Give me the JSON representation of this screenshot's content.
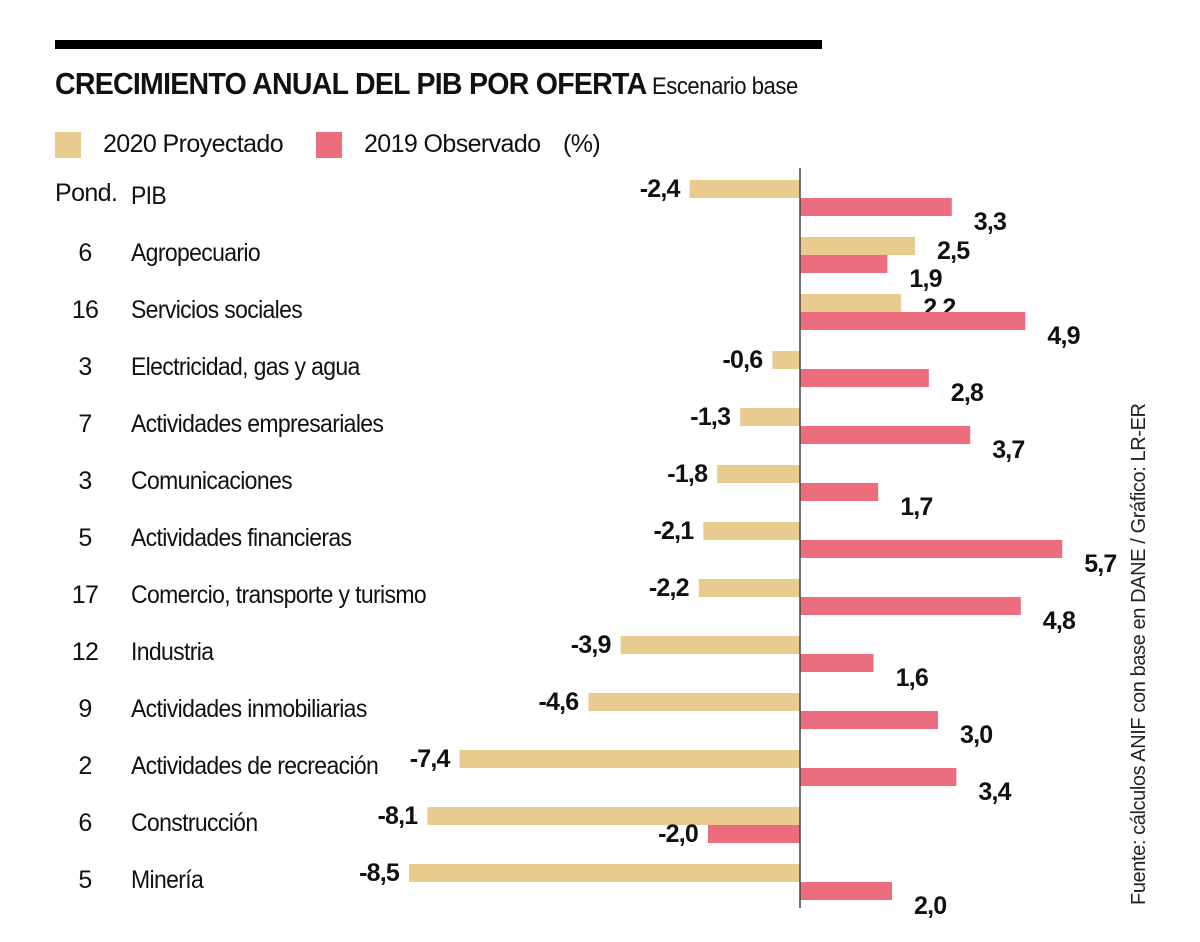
{
  "header": {
    "title": "CRECIMIENTO ANUAL DEL PIB POR OFERTA",
    "subtitle": "Escenario base"
  },
  "legend": {
    "items": [
      {
        "label": "2020 Proyectado",
        "color": "#e9cb90"
      },
      {
        "label": "2019 Observado",
        "color": "#ec6e7e"
      }
    ],
    "unit": "(%)"
  },
  "columns": {
    "weight_header": "Pond.",
    "first_category": "PIB"
  },
  "source": "Fuente: cálculos ANIF con base en DANE / Gráfico: LR-ER",
  "chart_data": {
    "type": "bar",
    "orientation": "horizontal",
    "title": "CRECIMIENTO ANUAL DEL PIB POR OFERTA",
    "subtitle": "Escenario base",
    "unit": "%",
    "categories": [
      "PIB",
      "Agropecuario",
      "Servicios sociales",
      "Electricidad, gas y agua",
      "Actividades empresariales",
      "Comunicaciones",
      "Actividades financieras",
      "Comercio, transporte y turismo",
      "Industria",
      "Actividades inmobiliarias",
      "Actividades de recreación",
      "Construcción",
      "Minería"
    ],
    "weights": [
      "",
      "6",
      "16",
      "3",
      "7",
      "3",
      "5",
      "17",
      "12",
      "9",
      "2",
      "6",
      "5"
    ],
    "series": [
      {
        "name": "2020 Proyectado",
        "color": "#e9cb90",
        "values": [
          -2.4,
          2.5,
          2.2,
          -0.6,
          -1.3,
          -1.8,
          -2.1,
          -2.2,
          -3.9,
          -4.6,
          -7.4,
          -8.1,
          -8.5
        ],
        "labels": [
          "-2,4",
          "2,5",
          "2,2",
          "-0,6",
          "-1,3",
          "-1,8",
          "-2,1",
          "-2,2",
          "-3,9",
          "-4,6",
          "-7,4",
          "-8,1",
          "-8,5"
        ]
      },
      {
        "name": "2019 Observado",
        "color": "#ec6e7e",
        "values": [
          3.3,
          1.9,
          4.9,
          2.8,
          3.7,
          1.7,
          5.7,
          4.8,
          1.6,
          3.0,
          3.4,
          -2.0,
          2.0
        ],
        "labels": [
          "3,3",
          "1,9",
          "4,9",
          "2,8",
          "3,7",
          "1,7",
          "5,7",
          "4,8",
          "1,6",
          "3,0",
          "3,4",
          "-2,0",
          "2,0"
        ]
      }
    ],
    "xlim": [
      -8.5,
      5.7
    ],
    "grid": false,
    "legend_position": "top-left"
  }
}
